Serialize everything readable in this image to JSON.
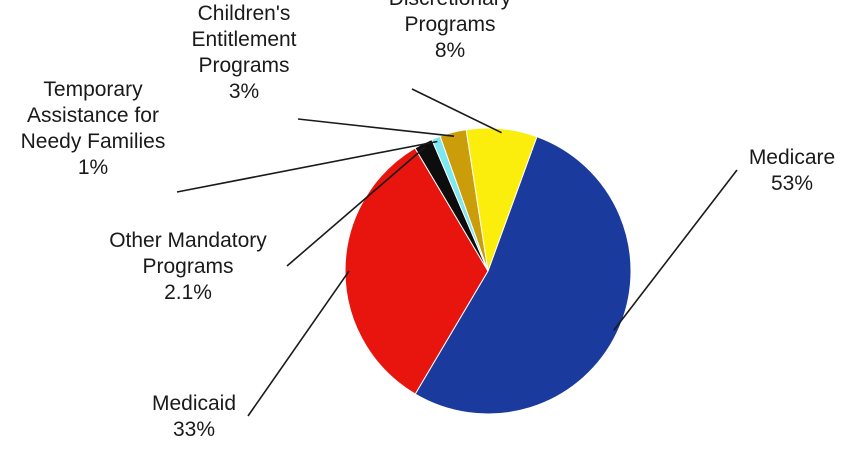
{
  "chart_data": {
    "type": "pie",
    "title": "",
    "slices": [
      {
        "name": "Medicare",
        "value": 53,
        "value_label": "53%",
        "label_lines": [
          "Medicare"
        ],
        "color": "#1a3a9e"
      },
      {
        "name": "Medicaid",
        "value": 33,
        "value_label": "33%",
        "label_lines": [
          "Medicaid"
        ],
        "color": "#e8150f"
      },
      {
        "name": "Other Mandatory Programs",
        "value": 2.1,
        "value_label": "2.1%",
        "label_lines": [
          "Other Mandatory",
          "Programs"
        ],
        "color": "#0d0d0d"
      },
      {
        "name": "Temporary Assistance for Needy Families",
        "value": 1,
        "value_label": "1%",
        "label_lines": [
          "Temporary",
          "Assistance for",
          "Needy Families"
        ],
        "color": "#7ee8f2"
      },
      {
        "name": "Children's Entitlement Programs",
        "value": 3,
        "value_label": "3%",
        "label_lines": [
          "Children's",
          "Entitlement",
          "Programs"
        ],
        "color": "#cc9d0a"
      },
      {
        "name": "Discretionary Programs",
        "value": 8,
        "value_label": "8%",
        "label_lines": [
          "Discretionary",
          "Programs"
        ],
        "color": "#fbee0c"
      }
    ]
  }
}
